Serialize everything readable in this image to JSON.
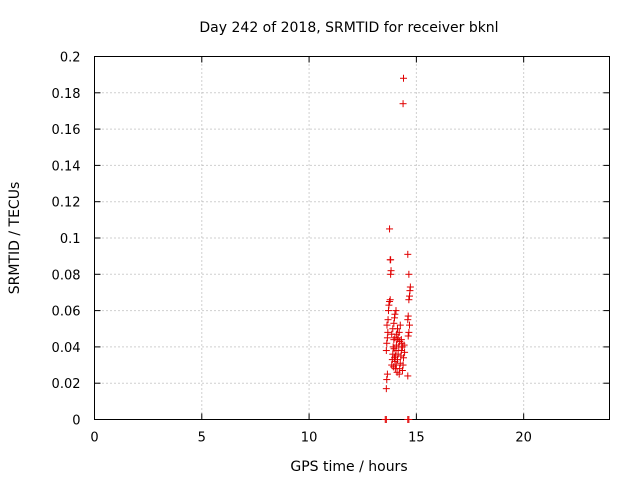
{
  "chart_data": {
    "type": "scatter",
    "title": "Day 242 of 2018, SRMTID for receiver bknl",
    "xlabel": "GPS time / hours",
    "ylabel": "SRMTID / TECUs",
    "xlim": [
      0,
      24
    ],
    "ylim": [
      0,
      0.2
    ],
    "xticks": [
      0,
      5,
      10,
      15,
      20
    ],
    "xtick_labels": [
      "0",
      "5",
      "10",
      "15",
      "20"
    ],
    "yticks": [
      0,
      0.02,
      0.04,
      0.06,
      0.08,
      0.1,
      0.12,
      0.14,
      0.16,
      0.18,
      0.2
    ],
    "ytick_labels": [
      "0",
      "0.02",
      "0.04",
      "0.06",
      "0.08",
      "0.1",
      "0.12",
      "0.14",
      "0.16",
      "0.18",
      "0.2"
    ],
    "grid": true,
    "marker": "+",
    "color": "#e00000",
    "series": [
      {
        "name": "SRMTID",
        "points": [
          [
            13.55,
            0.0
          ],
          [
            13.6,
            0.0
          ],
          [
            14.6,
            0.0
          ],
          [
            14.65,
            0.0
          ],
          [
            13.6,
            0.017
          ],
          [
            13.62,
            0.022
          ],
          [
            13.65,
            0.025
          ],
          [
            13.6,
            0.038
          ],
          [
            13.62,
            0.042
          ],
          [
            13.65,
            0.045
          ],
          [
            13.67,
            0.048
          ],
          [
            13.63,
            0.052
          ],
          [
            13.68,
            0.055
          ],
          [
            13.7,
            0.06
          ],
          [
            13.72,
            0.063
          ],
          [
            13.75,
            0.065
          ],
          [
            13.78,
            0.066
          ],
          [
            13.8,
            0.08
          ],
          [
            13.82,
            0.082
          ],
          [
            13.78,
            0.088
          ],
          [
            13.8,
            0.088
          ],
          [
            13.75,
            0.105
          ],
          [
            13.85,
            0.03
          ],
          [
            13.88,
            0.033
          ],
          [
            13.9,
            0.036
          ],
          [
            13.92,
            0.04
          ],
          [
            13.95,
            0.044
          ],
          [
            13.85,
            0.047
          ],
          [
            13.9,
            0.05
          ],
          [
            13.95,
            0.053
          ],
          [
            13.98,
            0.056
          ],
          [
            14.0,
            0.058
          ],
          [
            14.0,
            0.032
          ],
          [
            14.02,
            0.035
          ],
          [
            14.05,
            0.038
          ],
          [
            14.07,
            0.041
          ],
          [
            14.1,
            0.044
          ],
          [
            14.02,
            0.028
          ],
          [
            14.06,
            0.03
          ],
          [
            14.1,
            0.026
          ],
          [
            14.12,
            0.033
          ],
          [
            14.15,
            0.036
          ],
          [
            14.18,
            0.04
          ],
          [
            14.2,
            0.025
          ],
          [
            14.22,
            0.028
          ],
          [
            14.25,
            0.031
          ],
          [
            14.28,
            0.035
          ],
          [
            14.3,
            0.038
          ],
          [
            14.32,
            0.042
          ],
          [
            14.35,
            0.027
          ],
          [
            14.38,
            0.03
          ],
          [
            14.4,
            0.034
          ],
          [
            14.15,
            0.045
          ],
          [
            14.2,
            0.048
          ],
          [
            14.25,
            0.052
          ],
          [
            14.3,
            0.044
          ],
          [
            14.12,
            0.05
          ],
          [
            14.08,
            0.047
          ],
          [
            13.98,
            0.034
          ],
          [
            13.93,
            0.029
          ],
          [
            14.45,
            0.037
          ],
          [
            14.43,
            0.041
          ],
          [
            14.0,
            0.045
          ],
          [
            14.05,
            0.06
          ],
          [
            13.96,
            0.039
          ],
          [
            14.22,
            0.043
          ],
          [
            14.35,
            0.04
          ],
          [
            14.38,
            0.174
          ],
          [
            14.4,
            0.188
          ],
          [
            14.6,
            0.024
          ],
          [
            14.62,
            0.046
          ],
          [
            14.65,
            0.048
          ],
          [
            14.68,
            0.052
          ],
          [
            14.6,
            0.055
          ],
          [
            14.62,
            0.057
          ],
          [
            14.65,
            0.066
          ],
          [
            14.68,
            0.068
          ],
          [
            14.7,
            0.071
          ],
          [
            14.72,
            0.073
          ],
          [
            14.65,
            0.08
          ],
          [
            14.6,
            0.091
          ]
        ]
      }
    ]
  }
}
